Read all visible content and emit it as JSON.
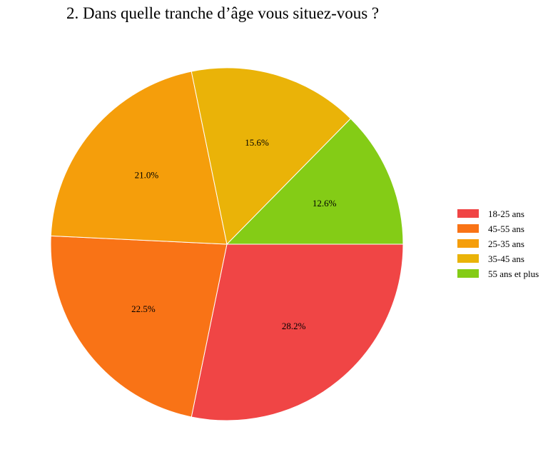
{
  "chart_data": {
    "type": "pie",
    "title": "2. Dans quelle tranche d’âge vous situez-vous ?",
    "categories": [
      "18-25 ans",
      "45-55 ans",
      "25-35 ans",
      "35-45 ans",
      "55 ans et plus"
    ],
    "values": [
      28.2,
      22.5,
      21.0,
      15.6,
      12.6
    ],
    "labels": [
      "28.2%",
      "22.5%",
      "21.0%",
      "15.6%",
      "12.6%"
    ],
    "colors": [
      "#F04545",
      "#F97316",
      "#F59E0B",
      "#EAB308",
      "#84CC16"
    ],
    "legend_position": "right"
  }
}
